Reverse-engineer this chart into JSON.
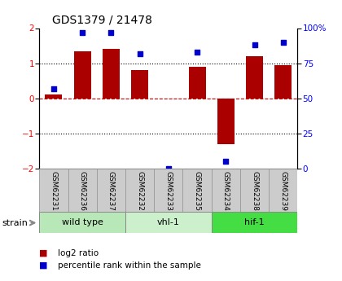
{
  "title": "GDS1379 / 21478",
  "samples": [
    "GSM62231",
    "GSM62236",
    "GSM62237",
    "GSM62232",
    "GSM62233",
    "GSM62235",
    "GSM62234",
    "GSM62238",
    "GSM62239"
  ],
  "log2_ratio": [
    0.1,
    1.35,
    1.4,
    0.8,
    0.0,
    0.9,
    -1.3,
    1.2,
    0.95
  ],
  "percentile_rank": [
    57,
    97,
    97,
    82,
    0.0,
    83,
    5,
    88,
    90
  ],
  "groups": [
    {
      "label": "wild type",
      "start": 0,
      "end": 3,
      "color": "#b8e8b8"
    },
    {
      "label": "vhl-1",
      "start": 3,
      "end": 6,
      "color": "#ccf0cc"
    },
    {
      "label": "hif-1",
      "start": 6,
      "end": 9,
      "color": "#44dd44"
    }
  ],
  "bar_color": "#aa0000",
  "dot_color": "#0000cc",
  "ylim_left": [
    -2,
    2
  ],
  "ylim_right": [
    0,
    100
  ],
  "yticks_left": [
    -2,
    -1,
    0,
    1,
    2
  ],
  "yticks_right": [
    0,
    25,
    50,
    75,
    100
  ],
  "ytick_labels_right": [
    "0",
    "25",
    "50",
    "75",
    "100%"
  ],
  "hline_color_zero": "#cc0000",
  "hline_color_grid": "#000000",
  "sample_box_color": "#cccccc",
  "sample_box_edge": "#999999",
  "legend_items": [
    {
      "label": "log2 ratio",
      "color": "#aa0000"
    },
    {
      "label": "percentile rank within the sample",
      "color": "#0000cc"
    }
  ]
}
